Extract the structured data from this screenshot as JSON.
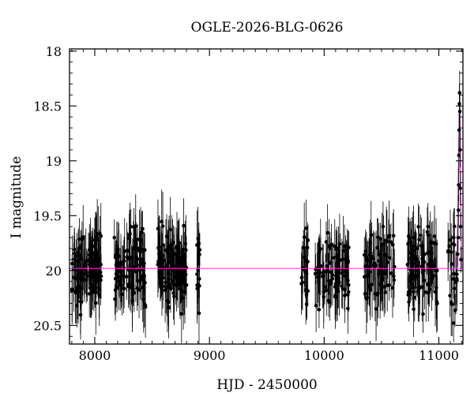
{
  "chart_data": {
    "type": "scatter",
    "title": "OGLE-2026-BLG-0626",
    "xlabel": "HJD - 2450000",
    "ylabel": "I magnitude",
    "xlim": [
      7780,
      11210
    ],
    "ylim": [
      20.67,
      17.98
    ],
    "y_inverted": true,
    "grid": false,
    "x_ticks": [
      "8000",
      "9000",
      "10000",
      "11000"
    ],
    "x_tick_values": [
      8000,
      9000,
      10000,
      11000
    ],
    "y_ticks": [
      "18",
      "18.5",
      "19",
      "19.5",
      "20",
      "20.5"
    ],
    "y_tick_values": [
      18,
      18.5,
      19,
      19.5,
      20,
      20.5
    ],
    "baseline": {
      "y": 19.98,
      "color": "#ff33ff"
    },
    "point_color": "#000000",
    "fit_color": "#cc33cc",
    "seasons": [
      {
        "x_start": 7800,
        "x_end": 8060,
        "n": 110
      },
      {
        "x_start": 8170,
        "x_end": 8450,
        "n": 110
      },
      {
        "x_start": 8550,
        "x_end": 8800,
        "n": 130
      },
      {
        "x_start": 8890,
        "x_end": 8920,
        "n": 14
      },
      {
        "x_start": 9800,
        "x_end": 9860,
        "n": 24
      },
      {
        "x_start": 9920,
        "x_end": 10220,
        "n": 90
      },
      {
        "x_start": 10350,
        "x_end": 10620,
        "n": 80
      },
      {
        "x_start": 10720,
        "x_end": 10990,
        "n": 90
      },
      {
        "x_start": 11080,
        "x_end": 11160,
        "n": 24
      }
    ],
    "event_points": [
      {
        "x": 11165,
        "y": 19.85,
        "err": 0.12
      },
      {
        "x": 11168,
        "y": 19.7,
        "err": 0.12
      },
      {
        "x": 11171,
        "y": 19.45,
        "err": 0.14
      },
      {
        "x": 11173,
        "y": 19.22,
        "err": 0.15
      },
      {
        "x": 11175,
        "y": 18.95,
        "err": 0.16
      },
      {
        "x": 11177,
        "y": 18.72,
        "err": 0.18
      },
      {
        "x": 11179,
        "y": 18.48,
        "err": 0.18
      },
      {
        "x": 11181,
        "y": 18.38,
        "err": 0.2
      },
      {
        "x": 11183,
        "y": 18.55,
        "err": 0.18
      },
      {
        "x": 11185,
        "y": 18.9,
        "err": 0.16
      },
      {
        "x": 11187,
        "y": 19.25,
        "err": 0.15
      },
      {
        "x": 11189,
        "y": 19.6,
        "err": 0.13
      },
      {
        "x": 11192,
        "y": 19.9,
        "err": 0.12
      }
    ]
  }
}
